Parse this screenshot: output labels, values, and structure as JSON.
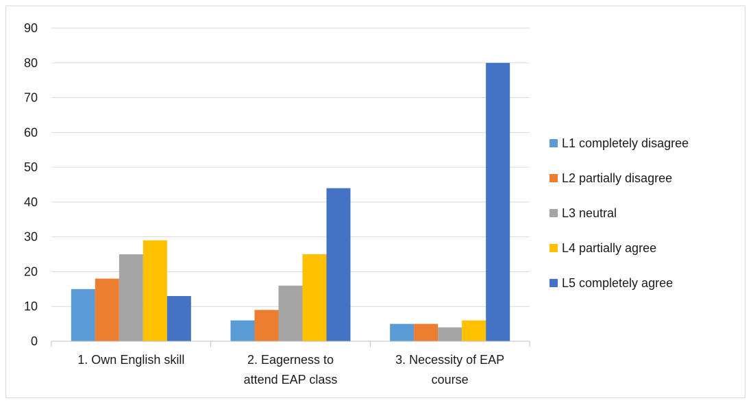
{
  "chart_data": {
    "type": "bar",
    "categories": [
      [
        "1. Own English skill"
      ],
      [
        "2. Eagerness to",
        "attend EAP class"
      ],
      [
        "3. Necessity of EAP",
        "course"
      ]
    ],
    "series": [
      {
        "name": "L1 completely disagree",
        "color": "#5b9bd5",
        "values": [
          15,
          6,
          5
        ]
      },
      {
        "name": "L2 partially disagree",
        "color": "#ed7d31",
        "values": [
          18,
          9,
          5
        ]
      },
      {
        "name": "L3 neutral",
        "color": "#a5a5a5",
        "values": [
          25,
          16,
          4
        ]
      },
      {
        "name": "L4 partially agree",
        "color": "#ffc000",
        "values": [
          29,
          25,
          6
        ]
      },
      {
        "name": "L5 completely agree",
        "color": "#4472c4",
        "values": [
          13,
          44,
          80
        ]
      }
    ],
    "yticks": [
      "0",
      "10",
      "20",
      "30",
      "40",
      "50",
      "60",
      "70",
      "80",
      "90"
    ],
    "ylim": [
      0,
      90
    ],
    "grid": true,
    "legend_position": "right",
    "title": "",
    "xlabel": "",
    "ylabel": ""
  }
}
